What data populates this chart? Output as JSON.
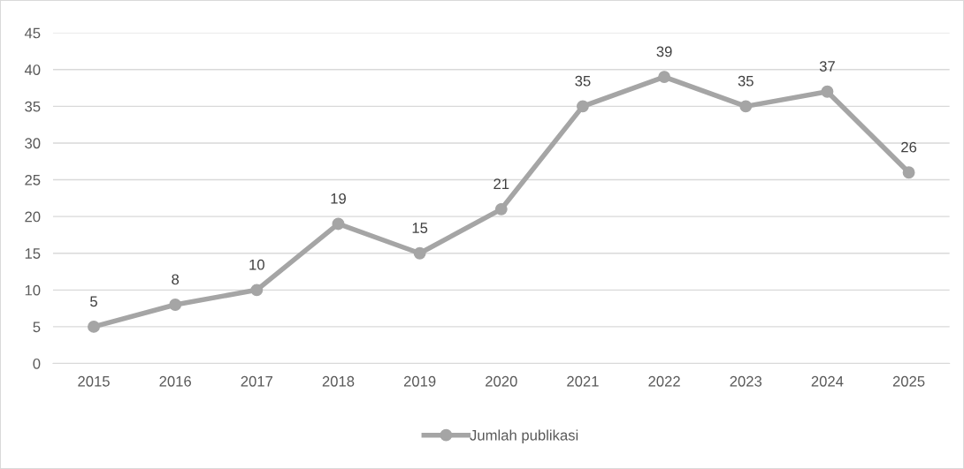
{
  "chart_data": {
    "type": "line",
    "categories": [
      "2015",
      "2016",
      "2017",
      "2018",
      "2019",
      "2020",
      "2021",
      "2022",
      "2023",
      "2024",
      "2025"
    ],
    "series": [
      {
        "name": "Jumlah publikasi",
        "color": "#a5a5a5",
        "values": [
          5,
          8,
          10,
          19,
          15,
          21,
          35,
          39,
          35,
          37,
          26
        ]
      }
    ],
    "ylim": [
      0,
      45
    ],
    "yticks": [
      0,
      5,
      10,
      15,
      20,
      25,
      30,
      35,
      40,
      45
    ],
    "grid": "y",
    "legend": "bottom",
    "marker": "circle",
    "line_style": "solid",
    "data_labels": true
  }
}
